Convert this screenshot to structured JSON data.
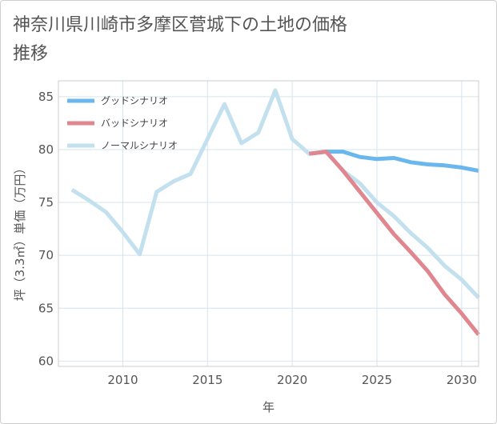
{
  "title": "神奈川県川崎市多摩区菅城下の土地の価格推移",
  "chart_data": {
    "type": "line",
    "title": "神奈川県川崎市多摩区菅城下の土地の価格推移",
    "xlabel": "年",
    "ylabel": "坪（3.3㎡）単価（万円）",
    "xlim": [
      2006.2,
      2031
    ],
    "ylim": [
      59.5,
      86.5
    ],
    "xticks": [
      2010,
      2015,
      2020,
      2025,
      2030
    ],
    "yticks": [
      60,
      65,
      70,
      75,
      80,
      85
    ],
    "grid": true,
    "legend_position": "top-left",
    "series": [
      {
        "name": "グッドシナリオ",
        "color": "#6ab7ee",
        "x": [
          2021,
          2022,
          2023,
          2024,
          2025,
          2026,
          2027,
          2028,
          2029,
          2030,
          2031
        ],
        "values": [
          79.6,
          79.8,
          79.8,
          79.3,
          79.1,
          79.2,
          78.8,
          78.6,
          78.5,
          78.3,
          78.0
        ]
      },
      {
        "name": "バッドシナリオ",
        "color": "#e0868f",
        "x": [
          2021,
          2022,
          2023,
          2024,
          2025,
          2026,
          2027,
          2028,
          2029,
          2030,
          2031
        ],
        "values": [
          79.6,
          79.8,
          78.0,
          76.0,
          74.0,
          72.0,
          70.3,
          68.5,
          66.3,
          64.5,
          62.5
        ]
      },
      {
        "name": "ノーマルシナリオ",
        "color": "#c3e0ee",
        "x": [
          2007,
          2008,
          2009,
          2010,
          2011,
          2012,
          2013,
          2014,
          2015,
          2016,
          2017,
          2018,
          2019,
          2020,
          2021,
          2022,
          2023,
          2024,
          2025,
          2026,
          2027,
          2028,
          2029,
          2030,
          2031
        ],
        "values": [
          76.2,
          75.2,
          74.1,
          72.2,
          70.1,
          76.0,
          77.0,
          77.7,
          81.0,
          84.3,
          80.6,
          81.6,
          85.6,
          81.0,
          79.6,
          79.8,
          78.0,
          76.8,
          75.0,
          73.7,
          72.1,
          70.7,
          69.0,
          67.7,
          66.0
        ]
      }
    ]
  }
}
